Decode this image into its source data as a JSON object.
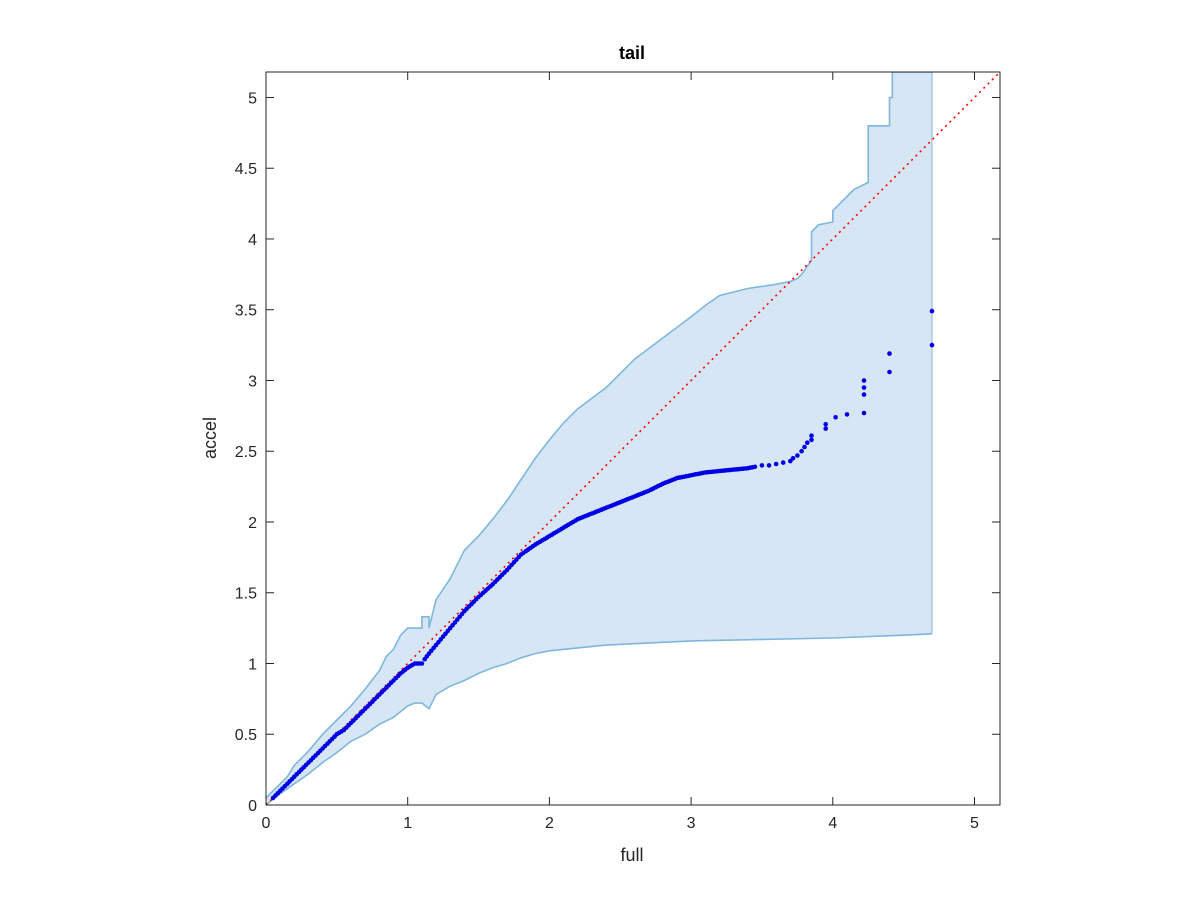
{
  "chart_data": {
    "type": "scatter",
    "title": "tail",
    "xlabel": "full",
    "ylabel": "accel",
    "xlim": [
      0,
      5.18
    ],
    "ylim": [
      0,
      5.18
    ],
    "xticks": [
      0,
      1,
      2,
      3,
      4,
      5
    ],
    "yticks": [
      0,
      0.5,
      1,
      1.5,
      2,
      2.5,
      3,
      3.5,
      4,
      4.5,
      5
    ],
    "grid": false,
    "colors": {
      "band_fill": "#d6e6f4",
      "band_edge": "#7fb7dc",
      "points": "#0000e6",
      "reference": "#ff0000",
      "axes": "#262626"
    },
    "reference_line": {
      "x": [
        0,
        5.18
      ],
      "y": [
        0,
        5.18
      ],
      "style": "dotted"
    },
    "band_upper": {
      "x": [
        0,
        0.05,
        0.1,
        0.15,
        0.2,
        0.3,
        0.4,
        0.5,
        0.6,
        0.7,
        0.8,
        0.85,
        0.9,
        0.95,
        1.0,
        1.1,
        1.1,
        1.15,
        1.15,
        1.2,
        1.3,
        1.4,
        1.5,
        1.6,
        1.7,
        1.8,
        1.9,
        2.0,
        2.1,
        2.2,
        2.4,
        2.6,
        2.8,
        3.0,
        3.1,
        3.2,
        3.4,
        3.6,
        3.7,
        3.75,
        3.78,
        3.85,
        3.85,
        3.9,
        4.0,
        4.0,
        4.05,
        4.1,
        4.15,
        4.25,
        4.25,
        4.4,
        4.4,
        4.42,
        4.42,
        4.7
      ],
      "y": [
        0.05,
        0.1,
        0.15,
        0.2,
        0.28,
        0.38,
        0.5,
        0.6,
        0.7,
        0.82,
        0.95,
        1.05,
        1.1,
        1.2,
        1.25,
        1.25,
        1.33,
        1.33,
        1.25,
        1.45,
        1.6,
        1.8,
        1.9,
        2.02,
        2.15,
        2.3,
        2.45,
        2.58,
        2.7,
        2.8,
        2.95,
        3.15,
        3.3,
        3.45,
        3.53,
        3.6,
        3.65,
        3.68,
        3.7,
        3.72,
        3.75,
        3.85,
        4.05,
        4.1,
        4.12,
        4.2,
        4.25,
        4.3,
        4.35,
        4.4,
        4.8,
        4.8,
        5.0,
        5.0,
        5.18,
        5.18
      ]
    },
    "band_lower": {
      "x": [
        0,
        0.05,
        0.1,
        0.2,
        0.3,
        0.4,
        0.5,
        0.6,
        0.7,
        0.8,
        0.9,
        1.0,
        1.05,
        1.1,
        1.15,
        1.2,
        1.3,
        1.4,
        1.5,
        1.6,
        1.7,
        1.8,
        1.9,
        2.0,
        2.2,
        2.4,
        2.6,
        2.8,
        3.0,
        3.5,
        4.0,
        4.5,
        4.7
      ],
      "y": [
        0.0,
        0.04,
        0.08,
        0.15,
        0.22,
        0.3,
        0.37,
        0.45,
        0.5,
        0.57,
        0.62,
        0.7,
        0.72,
        0.72,
        0.68,
        0.78,
        0.84,
        0.88,
        0.93,
        0.97,
        1.0,
        1.04,
        1.07,
        1.09,
        1.11,
        1.13,
        1.14,
        1.15,
        1.16,
        1.17,
        1.18,
        1.2,
        1.21
      ]
    },
    "series": [
      {
        "kind": "quantile-points",
        "x": [
          0.05,
          0.1,
          0.15,
          0.2,
          0.25,
          0.3,
          0.35,
          0.4,
          0.45,
          0.5,
          0.55,
          0.6,
          0.65,
          0.7,
          0.75,
          0.8,
          0.85,
          0.9,
          0.95,
          1.0,
          1.05,
          1.1,
          1.12,
          1.15,
          1.2,
          1.3,
          1.4,
          1.5,
          1.6,
          1.7,
          1.8,
          1.9,
          2.0,
          2.1,
          2.2,
          2.3,
          2.4,
          2.5,
          2.6,
          2.7,
          2.8,
          2.9,
          3.0,
          3.1,
          3.2,
          3.3,
          3.4,
          3.45,
          3.5,
          3.55,
          3.6,
          3.65,
          3.7,
          3.72,
          3.75,
          3.78,
          3.8,
          3.82,
          3.85,
          3.85,
          3.95,
          3.95,
          4.02,
          4.1,
          4.22,
          4.22,
          4.22,
          4.22,
          4.4,
          4.4,
          4.7,
          4.7
        ],
        "y": [
          0.05,
          0.1,
          0.15,
          0.2,
          0.25,
          0.3,
          0.35,
          0.4,
          0.45,
          0.5,
          0.53,
          0.58,
          0.63,
          0.68,
          0.73,
          0.78,
          0.83,
          0.88,
          0.93,
          0.97,
          1.0,
          1.0,
          1.03,
          1.07,
          1.13,
          1.25,
          1.37,
          1.47,
          1.56,
          1.66,
          1.77,
          1.84,
          1.9,
          1.96,
          2.02,
          2.06,
          2.1,
          2.14,
          2.18,
          2.22,
          2.27,
          2.31,
          2.33,
          2.35,
          2.36,
          2.37,
          2.38,
          2.39,
          2.4,
          2.4,
          2.41,
          2.42,
          2.43,
          2.45,
          2.47,
          2.5,
          2.53,
          2.56,
          2.58,
          2.61,
          2.66,
          2.69,
          2.74,
          2.76,
          2.77,
          2.9,
          2.95,
          3.0,
          3.06,
          3.19,
          3.25,
          3.49
        ]
      }
    ]
  }
}
